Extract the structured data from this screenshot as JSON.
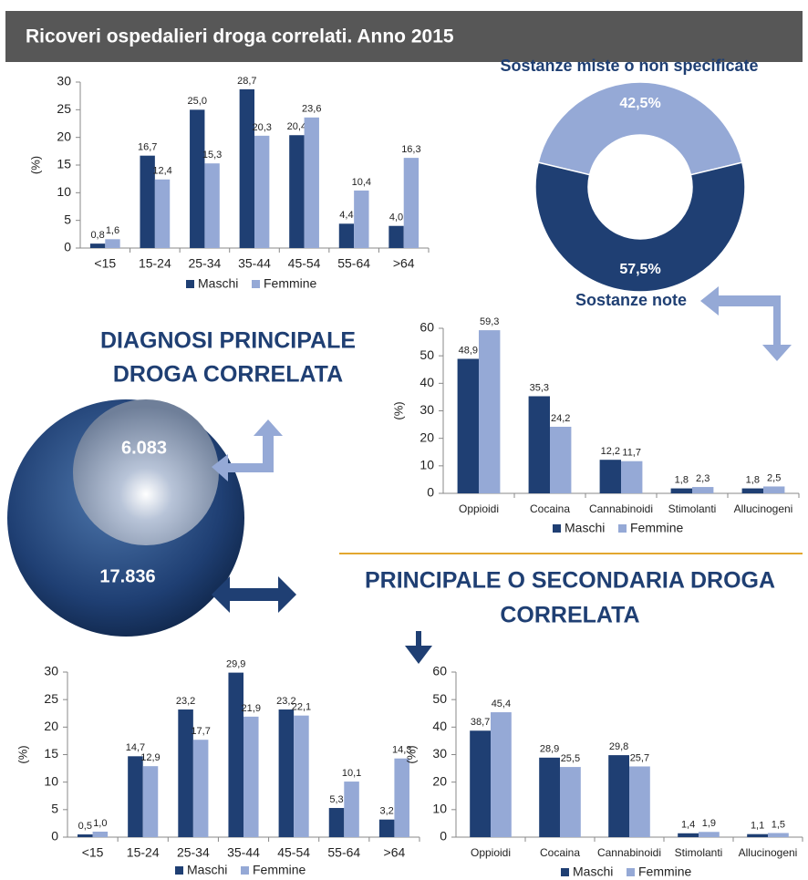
{
  "header": {
    "title": "Ricoveri ospedalieri droga correlati. Anno 2015"
  },
  "diagnosi": {
    "title_lines": [
      "DIAGNOSI PRINCIPALE",
      "DROGA CORRELATA"
    ],
    "inner_value": "6.083",
    "outer_value": "17.836"
  },
  "secondaria": {
    "title_lines": [
      "PRINCIPALE O SECONDARIA DROGA",
      "CORRELATA"
    ]
  },
  "chart_data": [
    {
      "type": "bar",
      "categories": [
        "<15",
        "15-24",
        "25-34",
        "35-44",
        "45-54",
        "55-64",
        ">64"
      ],
      "ylabel": "(%)",
      "ylim": [
        0,
        30
      ],
      "yticks": [
        0,
        5,
        10,
        15,
        20,
        25,
        30
      ],
      "grid": false,
      "legend": "bottom",
      "series": [
        {
          "name": "Maschi",
          "color": "#1f3f73",
          "values": [
            0.8,
            16.7,
            25.0,
            28.7,
            20.4,
            4.4,
            4.0
          ],
          "value_labels": [
            "0,8",
            "16,7",
            "25,0",
            "28,7",
            "20,4",
            "4,4",
            "4,0"
          ]
        },
        {
          "name": "Femmine",
          "color": "#95a9d6",
          "values": [
            1.6,
            12.4,
            15.3,
            20.3,
            23.6,
            10.4,
            16.3
          ],
          "value_labels": [
            "1,6",
            "12,4",
            "15,3",
            "20,3",
            "23,6",
            "10,4",
            "16,3"
          ]
        }
      ]
    },
    {
      "type": "pie",
      "categories": [
        "Sostanze miste o non specificate",
        "Sostanze note"
      ],
      "values": [
        42.5,
        57.5
      ],
      "value_labels": [
        "42,5%",
        "57,5%"
      ],
      "colors": [
        "#95a9d6",
        "#1f3f73"
      ],
      "donut": true
    },
    {
      "type": "bar",
      "categories": [
        "Oppioidi",
        "Cocaina",
        "Cannabinoidi",
        "Stimolanti",
        "Allucinogeni"
      ],
      "ylabel": "(%)",
      "ylim": [
        0,
        60
      ],
      "yticks": [
        0,
        10,
        20,
        30,
        40,
        50,
        60
      ],
      "grid": false,
      "legend": "bottom",
      "series": [
        {
          "name": "Maschi",
          "color": "#1f3f73",
          "values": [
            48.9,
            35.3,
            12.2,
            1.8,
            1.8
          ],
          "value_labels": [
            "48,9",
            "35,3",
            "12,2",
            "1,8",
            "1,8"
          ]
        },
        {
          "name": "Femmine",
          "color": "#95a9d6",
          "values": [
            59.3,
            24.2,
            11.7,
            2.3,
            2.5
          ],
          "value_labels": [
            "59,3",
            "24,2",
            "11,7",
            "2,3",
            "2,5"
          ]
        }
      ]
    },
    {
      "type": "bar",
      "categories": [
        "<15",
        "15-24",
        "25-34",
        "35-44",
        "45-54",
        "55-64",
        ">64"
      ],
      "ylabel": "(%)",
      "ylim": [
        0,
        30
      ],
      "yticks": [
        0,
        5,
        10,
        15,
        20,
        25,
        30
      ],
      "grid": false,
      "legend": "bottom",
      "series": [
        {
          "name": "Maschi",
          "color": "#1f3f73",
          "values": [
            0.5,
            14.7,
            23.2,
            29.9,
            23.2,
            5.3,
            3.2
          ],
          "value_labels": [
            "0,5",
            "14,7",
            "23,2",
            "29,9",
            "23,2",
            "5,3",
            "3,2"
          ]
        },
        {
          "name": "Femmine",
          "color": "#95a9d6",
          "values": [
            1.0,
            12.9,
            17.7,
            21.9,
            22.1,
            10.1,
            14.3
          ],
          "value_labels": [
            "1,0",
            "12,9",
            "17,7",
            "21,9",
            "22,1",
            "10,1",
            "14,3"
          ]
        }
      ]
    },
    {
      "type": "bar",
      "categories": [
        "Oppioidi",
        "Cocaina",
        "Cannabinoidi",
        "Stimolanti",
        "Allucinogeni"
      ],
      "ylabel": "(%)",
      "ylim": [
        0,
        60
      ],
      "yticks": [
        0,
        10,
        20,
        30,
        40,
        50,
        60
      ],
      "grid": false,
      "legend": "bottom",
      "series": [
        {
          "name": "Maschi",
          "color": "#1f3f73",
          "values": [
            38.7,
            28.9,
            29.8,
            1.4,
            1.1
          ],
          "value_labels": [
            "38,7",
            "28,9",
            "29,8",
            "1,4",
            "1,1"
          ]
        },
        {
          "name": "Femmine",
          "color": "#95a9d6",
          "values": [
            45.4,
            25.5,
            25.7,
            1.9,
            1.5
          ],
          "value_labels": [
            "45,4",
            "25,5",
            "25,7",
            "1,9",
            "1,5"
          ]
        }
      ]
    }
  ]
}
